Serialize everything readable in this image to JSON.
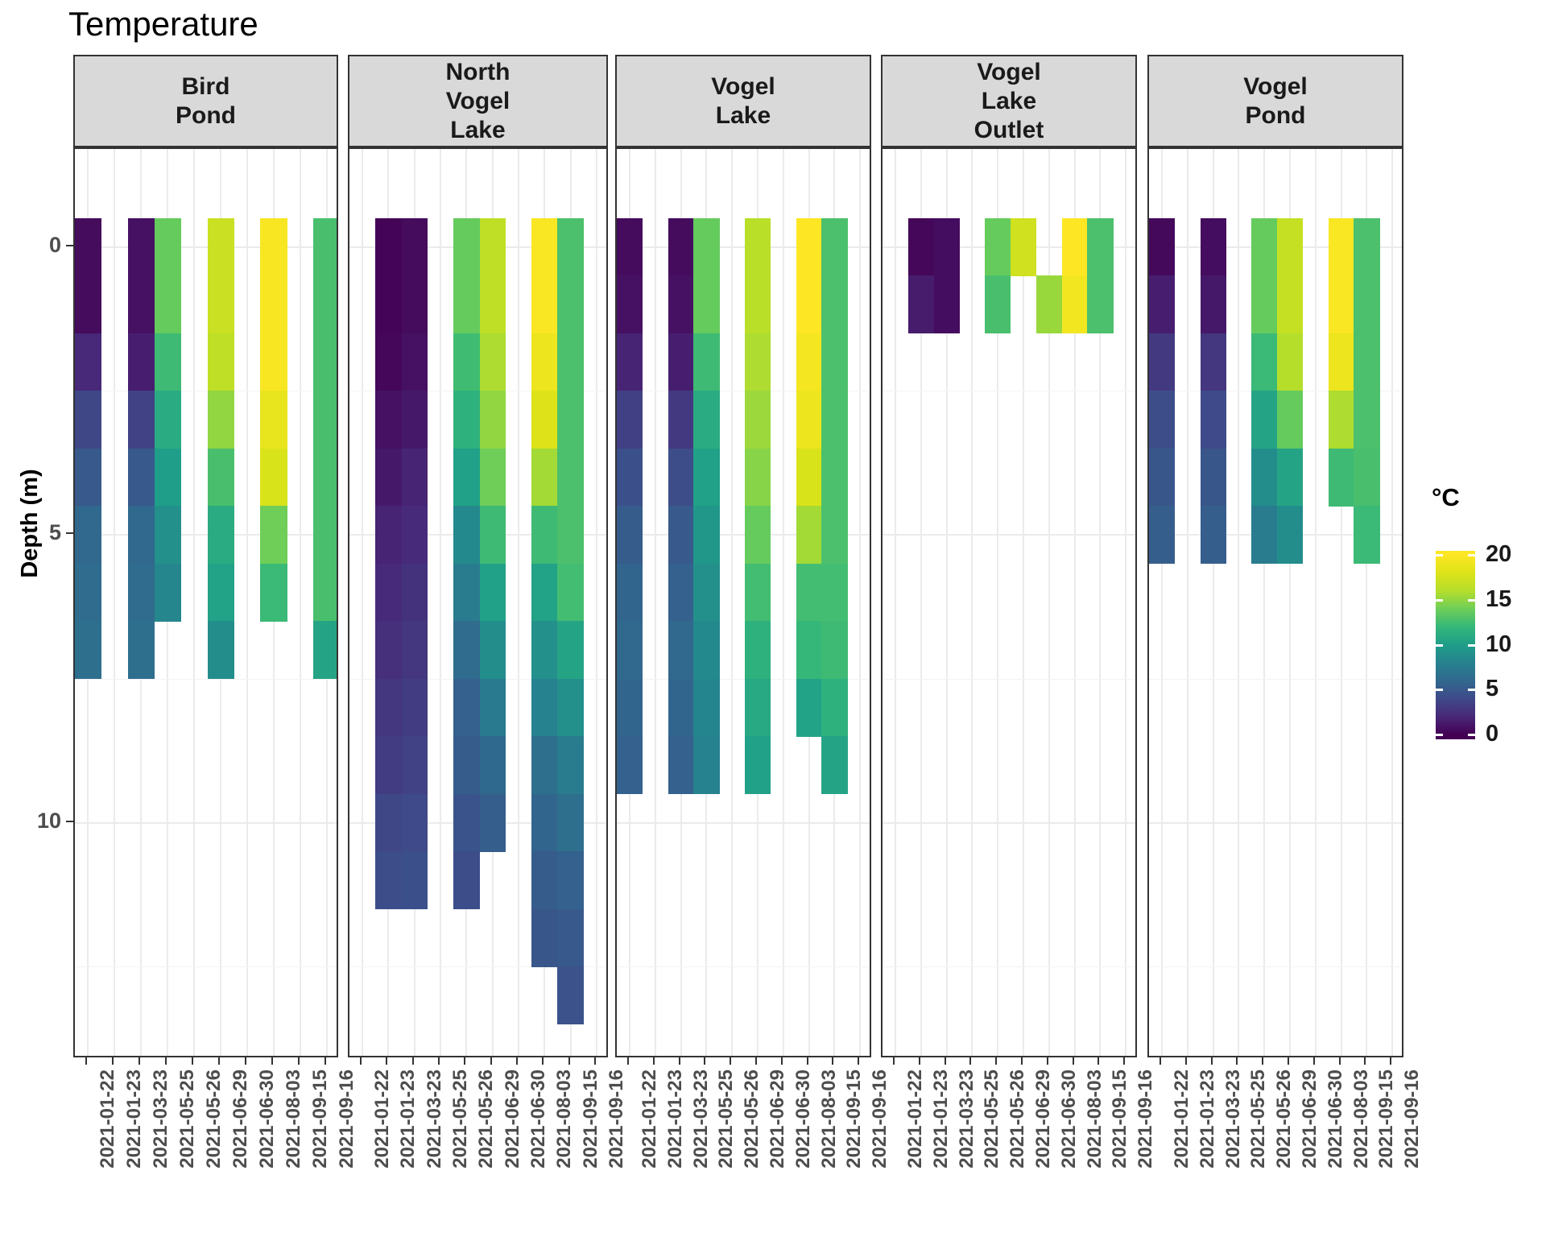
{
  "title": "Temperature",
  "y_axis": {
    "label": "Depth (m)",
    "ticks": [
      0,
      5,
      10
    ]
  },
  "x_axis": {
    "dates": [
      "2021-01-22",
      "2021-01-23",
      "2021-03-23",
      "2021-05-25",
      "2021-05-26",
      "2021-06-29",
      "2021-06-30",
      "2021-08-03",
      "2021-09-15",
      "2021-09-16"
    ]
  },
  "legend": {
    "title": "°C",
    "ticks": [
      20,
      15,
      10,
      5,
      0
    ]
  },
  "chart_data": {
    "type": "heatmap",
    "title": "Temperature",
    "xlabel": "",
    "ylabel": "Depth (m)",
    "depth_unit": "m",
    "value_unit": "°C",
    "color_scale": {
      "palette": "viridis",
      "domain": [
        0,
        20
      ],
      "legend_position": "right"
    },
    "grid": true,
    "facets": [
      {
        "name": "Bird Pond",
        "label_lines": [
          "Bird",
          "Pond"
        ],
        "columns": [
          {
            "date": "2021-01-22",
            "start_depth": 0,
            "temps": [
              0.5,
              0.5,
              2.0,
              3.8,
              5.0,
              6.0,
              6.3,
              6.5
            ]
          },
          {
            "date": "2021-03-23",
            "start_depth": 0,
            "temps": [
              0.8,
              0.8,
              1.5,
              3.5,
              5.0,
              6.0,
              6.3,
              6.5
            ]
          },
          {
            "date": "2021-05-25",
            "start_depth": 0,
            "temps": [
              13.7,
              13.7,
              12.3,
              11.0,
              10.0,
              9.0,
              8.3
            ]
          },
          {
            "date": "2021-06-29",
            "start_depth": 0,
            "temps": [
              17.0,
              17.0,
              16.5,
              15.0,
              12.7,
              11.0,
              10.3,
              8.8
            ]
          },
          {
            "date": "2021-08-03",
            "start_depth": 0,
            "temps": [
              19.7,
              19.7,
              19.7,
              18.7,
              17.8,
              14.0,
              12.2
            ]
          },
          {
            "date": "2021-09-16",
            "start_depth": 0,
            "temps": [
              12.7,
              12.7,
              12.7,
              12.7,
              12.7,
              12.7,
              12.7,
              10.5
            ]
          }
        ]
      },
      {
        "name": "North Vogel Lake",
        "label_lines": [
          "North",
          "Vogel",
          "Lake"
        ],
        "columns": [
          {
            "date": "2021-01-23",
            "start_depth": 0,
            "temps": [
              0.2,
              0.2,
              0.3,
              0.8,
              1.2,
              1.8,
              2.2,
              2.4,
              2.8,
              3.2,
              3.8,
              4.2
            ]
          },
          {
            "date": "2021-03-23",
            "start_depth": 0,
            "temps": [
              0.5,
              0.5,
              0.8,
              1.2,
              1.8,
              2.2,
              2.6,
              2.8,
              3.2,
              3.5,
              4.0,
              4.4
            ]
          },
          {
            "date": "2021-05-26",
            "start_depth": 0,
            "temps": [
              13.7,
              13.7,
              12.4,
              11.5,
              10.2,
              8.5,
              7.5,
              6.3,
              5.5,
              5.2,
              4.6,
              4.2
            ]
          },
          {
            "date": "2021-06-29",
            "start_depth": 0,
            "temps": [
              16.5,
              16.5,
              15.8,
              15.0,
              14.0,
              12.3,
              10.2,
              8.8,
              7.4,
              6.1,
              5.3
            ]
          },
          {
            "date": "2021-08-03",
            "start_depth": 0,
            "temps": [
              19.8,
              19.8,
              19.0,
              18.0,
              15.5,
              12.3,
              10.3,
              9.0,
              8.0,
              6.5,
              5.8,
              5.2,
              4.8
            ]
          },
          {
            "date": "2021-09-15",
            "start_depth": 0,
            "temps": [
              12.8,
              12.8,
              12.8,
              12.8,
              12.8,
              12.8,
              12.5,
              10.5,
              9.0,
              7.5,
              6.5,
              5.5,
              5.0,
              4.5
            ]
          }
        ]
      },
      {
        "name": "Vogel Lake",
        "label_lines": [
          "Vogel",
          "Lake"
        ],
        "columns": [
          {
            "date": "2021-01-22",
            "start_depth": 0,
            "temps": [
              0.5,
              0.8,
              1.8,
              3.4,
              4.4,
              5.2,
              5.8,
              6.0,
              5.8,
              5.5
            ]
          },
          {
            "date": "2021-03-23",
            "start_depth": 0,
            "temps": [
              0.5,
              0.8,
              1.5,
              3.0,
              4.2,
              5.0,
              5.5,
              6.0,
              5.8,
              5.5
            ]
          },
          {
            "date": "2021-05-25",
            "start_depth": 0,
            "temps": [
              13.7,
              13.7,
              12.3,
              11.0,
              10.2,
              9.5,
              9.0,
              8.5,
              8.2,
              8.0
            ]
          },
          {
            "date": "2021-06-29",
            "start_depth": 0,
            "temps": [
              16.2,
              16.2,
              15.8,
              15.3,
              14.7,
              13.7,
              12.5,
              11.5,
              10.8,
              10.2
            ]
          },
          {
            "date": "2021-08-03",
            "start_depth": 0,
            "temps": [
              20.0,
              20.0,
              19.5,
              19.0,
              17.8,
              15.5,
              12.5,
              12.0,
              10.3
            ]
          },
          {
            "date": "2021-09-15",
            "start_depth": 0,
            "temps": [
              12.8,
              12.8,
              12.8,
              12.8,
              12.8,
              12.8,
              12.5,
              12.3,
              11.5,
              10.5
            ]
          }
        ]
      },
      {
        "name": "Vogel Lake Outlet",
        "label_lines": [
          "Vogel",
          "Lake",
          "Outlet"
        ],
        "columns": [
          {
            "date": "2021-01-23",
            "start_depth": 0,
            "temps": [
              0.3,
              1.4
            ]
          },
          {
            "date": "2021-03-23",
            "start_depth": 0,
            "temps": [
              0.6,
              0.6
            ]
          },
          {
            "date": "2021-05-26",
            "start_depth": 0,
            "temps": [
              13.7,
              12.7
            ]
          },
          {
            "date": "2021-06-29",
            "start_depth": 0,
            "temps": [
              17.3
            ]
          },
          {
            "date": "2021-06-30",
            "start_depth": 1,
            "temps": [
              15.2
            ]
          },
          {
            "date": "2021-08-03",
            "start_depth": 0,
            "temps": [
              20.0,
              19.3
            ]
          },
          {
            "date": "2021-09-15",
            "start_depth": 0,
            "temps": [
              12.8,
              12.8
            ]
          }
        ]
      },
      {
        "name": "Vogel Pond",
        "label_lines": [
          "Vogel",
          "Pond"
        ],
        "columns": [
          {
            "date": "2021-01-22",
            "start_depth": 0,
            "temps": [
              0.4,
              1.5,
              3.0,
              4.2,
              4.8,
              5.3
            ]
          },
          {
            "date": "2021-03-23",
            "start_depth": 0,
            "temps": [
              0.6,
              1.2,
              2.8,
              4.0,
              4.8,
              5.3
            ]
          },
          {
            "date": "2021-05-26",
            "start_depth": 0,
            "temps": [
              13.7,
              13.7,
              12.2,
              10.5,
              8.8,
              7.5
            ]
          },
          {
            "date": "2021-06-29",
            "start_depth": 0,
            "temps": [
              16.8,
              16.8,
              16.0,
              13.7,
              10.5,
              8.8
            ]
          },
          {
            "date": "2021-08-03",
            "start_depth": 0,
            "temps": [
              19.8,
              19.8,
              19.0,
              15.8,
              12.3
            ]
          },
          {
            "date": "2021-09-15",
            "start_depth": 0,
            "temps": [
              12.8,
              12.8,
              12.8,
              12.8,
              12.7,
              12.2
            ]
          }
        ]
      }
    ]
  }
}
